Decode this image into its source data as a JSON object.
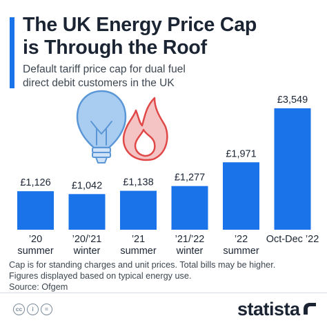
{
  "title_lines": [
    "The UK Energy Price Cap",
    "is Through the Roof"
  ],
  "subtitle_lines": [
    "Default tariff price cap for dual fuel",
    "direct debit customers in the UK"
  ],
  "notes": [
    "Cap is for standing charges and unit prices. Total bills may be higher.",
    "Figures displayed based on typical energy use.",
    "Source: Ofgem"
  ],
  "brand": "statista",
  "footer_icons": [
    "creative-commons-icon",
    "attribution-icon",
    "no-derivatives-icon"
  ],
  "footer_icon_glyphs": [
    "cc",
    "i",
    "="
  ],
  "colors": {
    "title": "#1b2433",
    "accent": "#1a73e8",
    "bar": "#1a73e8",
    "bulb_fill": "#a8cdf0",
    "bulb_stroke": "#5b96d6",
    "flame_fill": "#f4c4c4",
    "flame_stroke": "#e04848"
  },
  "chart_data": {
    "type": "bar",
    "categories": [
      [
        "’20",
        "summer"
      ],
      [
        "’20/’21",
        "winter"
      ],
      [
        "’21",
        "summer"
      ],
      [
        "’21/’22",
        "winter"
      ],
      [
        "’22",
        "summer"
      ],
      [
        "Oct-Dec ’22"
      ]
    ],
    "values": [
      1126,
      1042,
      1138,
      1277,
      1971,
      3549
    ],
    "value_labels": [
      "£1,126",
      "£1,042",
      "£1,138",
      "£1,277",
      "£1,971",
      "£3,549"
    ],
    "grid": false,
    "decorations": [
      "light-bulb-icon",
      "flame-icon"
    ]
  }
}
